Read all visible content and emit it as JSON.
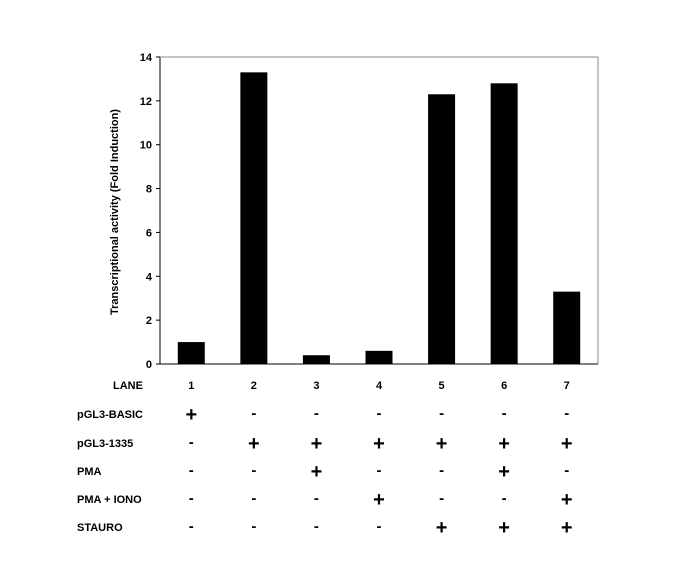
{
  "chart_data": {
    "type": "bar",
    "categories": [
      "1",
      "2",
      "3",
      "4",
      "5",
      "6",
      "7"
    ],
    "values": [
      1.0,
      13.3,
      0.4,
      0.6,
      12.3,
      12.8,
      3.3
    ],
    "ylabel": "Transcriptional activity (Fold Induction)",
    "xlabel": "",
    "ylim": [
      0,
      14
    ],
    "yticks": [
      0,
      2,
      4,
      6,
      8,
      10,
      12,
      14
    ],
    "bar_color": "#000000",
    "grid": false
  },
  "condition_table": {
    "lane_label": "LANE",
    "rows": [
      {
        "label": "pGL3-BASIC",
        "signs": [
          "+",
          "-",
          "-",
          "-",
          "-",
          "-",
          "-"
        ]
      },
      {
        "label": "pGL3-1335",
        "signs": [
          "-",
          "+",
          "+",
          "+",
          "+",
          "+",
          "+"
        ]
      },
      {
        "label": "PMA",
        "signs": [
          "-",
          "-",
          "+",
          "-",
          "-",
          "+",
          "-"
        ]
      },
      {
        "label": "PMA + IONO",
        "signs": [
          "-",
          "-",
          "-",
          "+",
          "-",
          "-",
          "+"
        ]
      },
      {
        "label": "STAURO",
        "signs": [
          "-",
          "-",
          "-",
          "-",
          "+",
          "+",
          "+"
        ]
      }
    ]
  }
}
